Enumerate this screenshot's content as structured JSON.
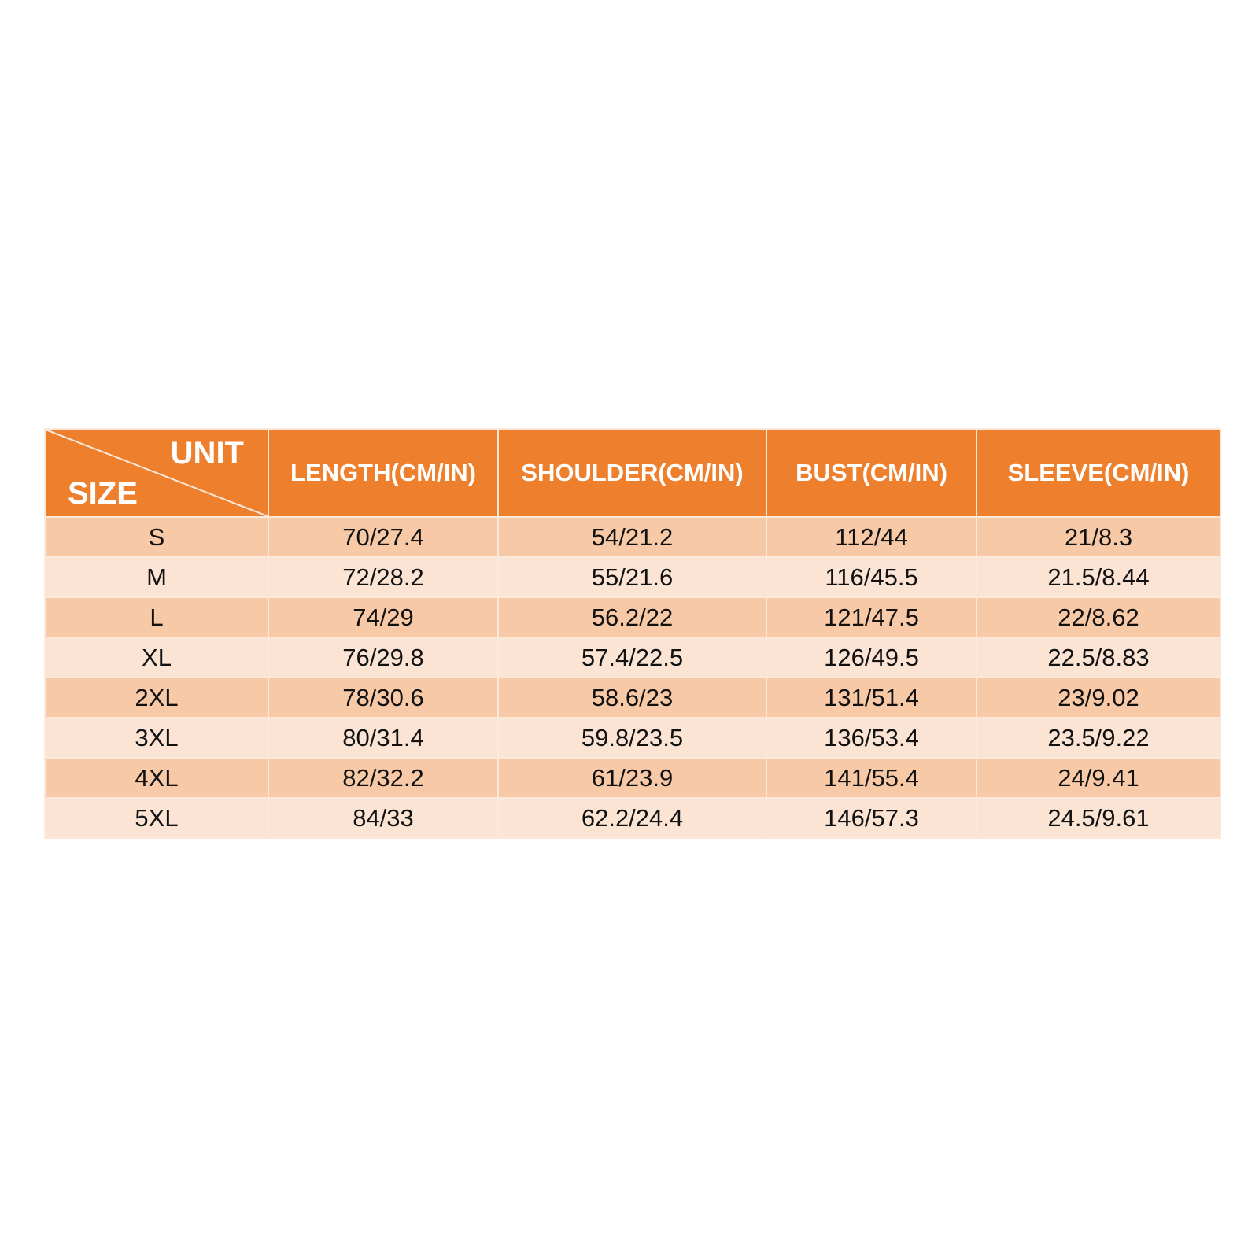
{
  "colors": {
    "header": "#ee7f2d",
    "row_dark": "#f8c9a7",
    "row_light": "#fbe4d4"
  },
  "table": {
    "corner": {
      "unit": "UNIT",
      "size": "SIZE"
    },
    "headers": [
      "LENGTH(CM/IN)",
      "SHOULDER(CM/IN)",
      "BUST(CM/IN)",
      "SLEEVE(CM/IN)"
    ],
    "rows": [
      [
        "S",
        "70/27.4",
        "54/21.2",
        "112/44",
        "21/8.3"
      ],
      [
        "M",
        "72/28.2",
        "55/21.6",
        "116/45.5",
        "21.5/8.44"
      ],
      [
        "L",
        "74/29",
        "56.2/22",
        "121/47.5",
        "22/8.62"
      ],
      [
        "XL",
        "76/29.8",
        "57.4/22.5",
        "126/49.5",
        "22.5/8.83"
      ],
      [
        "2XL",
        "78/30.6",
        "58.6/23",
        "131/51.4",
        "23/9.02"
      ],
      [
        "3XL",
        "80/31.4",
        "59.8/23.5",
        "136/53.4",
        "23.5/9.22"
      ],
      [
        "4XL",
        "82/32.2",
        "61/23.9",
        "141/55.4",
        "24/9.41"
      ],
      [
        "5XL",
        "84/33",
        "62.2/24.4",
        "146/57.3",
        "24.5/9.61"
      ]
    ]
  }
}
